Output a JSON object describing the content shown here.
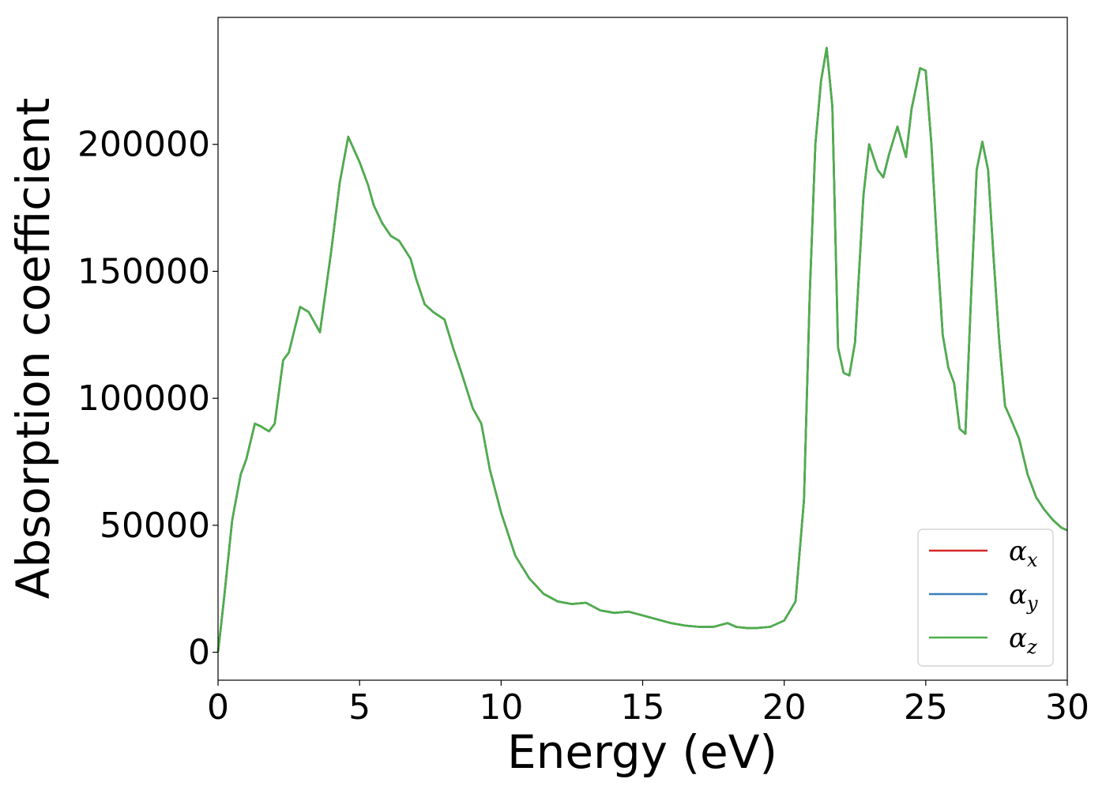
{
  "chart_data": {
    "type": "line",
    "title": "",
    "xlabel": "Energy (eV)",
    "ylabel": "Absorption coefficient",
    "xlim": [
      0,
      30
    ],
    "ylim": [
      -11000,
      250000
    ],
    "x_ticks": [
      0,
      5,
      10,
      15,
      20,
      25,
      30
    ],
    "x_tick_labels": [
      "0",
      "5",
      "10",
      "15",
      "20",
      "25",
      "30"
    ],
    "y_ticks": [
      0,
      50000,
      100000,
      150000,
      200000
    ],
    "y_tick_labels": [
      "0",
      "50000",
      "100000",
      "150000",
      "200000"
    ],
    "grid": false,
    "legend_position": "lower-right",
    "series": [
      {
        "name": "αx",
        "label_base": "α",
        "label_sub": "x",
        "color": "#d62728",
        "x": [
          0,
          0.2,
          0.5,
          0.8,
          1.0,
          1.3,
          1.5,
          1.8,
          2.0,
          2.3,
          2.5,
          2.9,
          3.2,
          3.6,
          4.0,
          4.3,
          4.6,
          4.8,
          5.0,
          5.3,
          5.5,
          5.8,
          6.1,
          6.4,
          6.8,
          7.0,
          7.3,
          7.6,
          8.0,
          8.3,
          8.6,
          9.0,
          9.3,
          9.6,
          10.0,
          10.5,
          11.0,
          11.5,
          12.0,
          12.5,
          13.0,
          13.5,
          14.0,
          14.5,
          15.0,
          15.5,
          16.0,
          16.5,
          17.0,
          17.5,
          18.0,
          18.3,
          18.7,
          19.0,
          19.5,
          20.0,
          20.4,
          20.7,
          20.9,
          21.1,
          21.3,
          21.5,
          21.7,
          21.9,
          22.1,
          22.3,
          22.5,
          22.8,
          23.0,
          23.3,
          23.5,
          23.7,
          24.0,
          24.3,
          24.5,
          24.8,
          25.0,
          25.2,
          25.4,
          25.6,
          25.8,
          26.0,
          26.2,
          26.4,
          26.6,
          26.8,
          27.0,
          27.2,
          27.4,
          27.6,
          27.8,
          28.0,
          28.3,
          28.6,
          28.9,
          29.2,
          29.5,
          29.8,
          30.0
        ],
        "values": [
          0,
          20000,
          52000,
          70000,
          76000,
          90000,
          89000,
          87000,
          90000,
          115000,
          118000,
          136000,
          134000,
          126000,
          158000,
          185000,
          203000,
          198000,
          193000,
          184000,
          176000,
          169000,
          164000,
          162000,
          155000,
          147000,
          137000,
          134000,
          131000,
          120000,
          110000,
          96000,
          90000,
          72000,
          55000,
          38000,
          29000,
          23000,
          20000,
          19000,
          19500,
          16500,
          15500,
          16000,
          14500,
          13000,
          11500,
          10500,
          10000,
          10000,
          11500,
          10000,
          9500,
          9500,
          10000,
          12500,
          20000,
          60000,
          140000,
          200000,
          225000,
          238000,
          215000,
          120000,
          110000,
          109000,
          122000,
          180000,
          200000,
          190000,
          187000,
          196000,
          207000,
          195000,
          214000,
          230000,
          229000,
          200000,
          160000,
          125000,
          112000,
          106000,
          88000,
          86000,
          140000,
          190000,
          201000,
          190000,
          155000,
          122000,
          97000,
          92000,
          84000,
          70000,
          61000,
          56000,
          52000,
          49000,
          48000
        ]
      },
      {
        "name": "αy",
        "label_base": "α",
        "label_sub": "y",
        "color": "#377eb8",
        "x": [
          0,
          0.2,
          0.5,
          0.8,
          1.0,
          1.3,
          1.5,
          1.8,
          2.0,
          2.3,
          2.5,
          2.9,
          3.2,
          3.6,
          4.0,
          4.3,
          4.6,
          4.8,
          5.0,
          5.3,
          5.5,
          5.8,
          6.1,
          6.4,
          6.8,
          7.0,
          7.3,
          7.6,
          8.0,
          8.3,
          8.6,
          9.0,
          9.3,
          9.6,
          10.0,
          10.5,
          11.0,
          11.5,
          12.0,
          12.5,
          13.0,
          13.5,
          14.0,
          14.5,
          15.0,
          15.5,
          16.0,
          16.5,
          17.0,
          17.5,
          18.0,
          18.3,
          18.7,
          19.0,
          19.5,
          20.0,
          20.4,
          20.7,
          20.9,
          21.1,
          21.3,
          21.5,
          21.7,
          21.9,
          22.1,
          22.3,
          22.5,
          22.8,
          23.0,
          23.3,
          23.5,
          23.7,
          24.0,
          24.3,
          24.5,
          24.8,
          25.0,
          25.2,
          25.4,
          25.6,
          25.8,
          26.0,
          26.2,
          26.4,
          26.6,
          26.8,
          27.0,
          27.2,
          27.4,
          27.6,
          27.8,
          28.0,
          28.3,
          28.6,
          28.9,
          29.2,
          29.5,
          29.8,
          30.0
        ],
        "values": [
          0,
          20000,
          52000,
          70000,
          76000,
          90000,
          89000,
          87000,
          90000,
          115000,
          118000,
          136000,
          134000,
          126000,
          158000,
          185000,
          203000,
          198000,
          193000,
          184000,
          176000,
          169000,
          164000,
          162000,
          155000,
          147000,
          137000,
          134000,
          131000,
          120000,
          110000,
          96000,
          90000,
          72000,
          55000,
          38000,
          29000,
          23000,
          20000,
          19000,
          19500,
          16500,
          15500,
          16000,
          14500,
          13000,
          11500,
          10500,
          10000,
          10000,
          11500,
          10000,
          9500,
          9500,
          10000,
          12500,
          20000,
          60000,
          140000,
          200000,
          225000,
          238000,
          215000,
          120000,
          110000,
          109000,
          122000,
          180000,
          200000,
          190000,
          187000,
          196000,
          207000,
          195000,
          214000,
          230000,
          229000,
          200000,
          160000,
          125000,
          112000,
          106000,
          88000,
          86000,
          140000,
          190000,
          201000,
          190000,
          155000,
          122000,
          97000,
          92000,
          84000,
          70000,
          61000,
          56000,
          52000,
          49000,
          48000
        ]
      },
      {
        "name": "αz",
        "label_base": "α",
        "label_sub": "z",
        "color": "#4daf4a",
        "x": [
          0,
          0.2,
          0.5,
          0.8,
          1.0,
          1.3,
          1.5,
          1.8,
          2.0,
          2.3,
          2.5,
          2.9,
          3.2,
          3.6,
          4.0,
          4.3,
          4.6,
          4.8,
          5.0,
          5.3,
          5.5,
          5.8,
          6.1,
          6.4,
          6.8,
          7.0,
          7.3,
          7.6,
          8.0,
          8.3,
          8.6,
          9.0,
          9.3,
          9.6,
          10.0,
          10.5,
          11.0,
          11.5,
          12.0,
          12.5,
          13.0,
          13.5,
          14.0,
          14.5,
          15.0,
          15.5,
          16.0,
          16.5,
          17.0,
          17.5,
          18.0,
          18.3,
          18.7,
          19.0,
          19.5,
          20.0,
          20.4,
          20.7,
          20.9,
          21.1,
          21.3,
          21.5,
          21.7,
          21.9,
          22.1,
          22.3,
          22.5,
          22.8,
          23.0,
          23.3,
          23.5,
          23.7,
          24.0,
          24.3,
          24.5,
          24.8,
          25.0,
          25.2,
          25.4,
          25.6,
          25.8,
          26.0,
          26.2,
          26.4,
          26.6,
          26.8,
          27.0,
          27.2,
          27.4,
          27.6,
          27.8,
          28.0,
          28.3,
          28.6,
          28.9,
          29.2,
          29.5,
          29.8,
          30.0
        ],
        "values": [
          0,
          20000,
          52000,
          70000,
          76000,
          90000,
          89000,
          87000,
          90000,
          115000,
          118000,
          136000,
          134000,
          126000,
          158000,
          185000,
          203000,
          198000,
          193000,
          184000,
          176000,
          169000,
          164000,
          162000,
          155000,
          147000,
          137000,
          134000,
          131000,
          120000,
          110000,
          96000,
          90000,
          72000,
          55000,
          38000,
          29000,
          23000,
          20000,
          19000,
          19500,
          16500,
          15500,
          16000,
          14500,
          13000,
          11500,
          10500,
          10000,
          10000,
          11500,
          10000,
          9500,
          9500,
          10000,
          12500,
          20000,
          60000,
          140000,
          200000,
          225000,
          238000,
          215000,
          120000,
          110000,
          109000,
          122000,
          180000,
          200000,
          190000,
          187000,
          196000,
          207000,
          195000,
          214000,
          230000,
          229000,
          200000,
          160000,
          125000,
          112000,
          106000,
          88000,
          86000,
          140000,
          190000,
          201000,
          190000,
          155000,
          122000,
          97000,
          92000,
          84000,
          70000,
          61000,
          56000,
          52000,
          49000,
          48000
        ]
      }
    ]
  }
}
